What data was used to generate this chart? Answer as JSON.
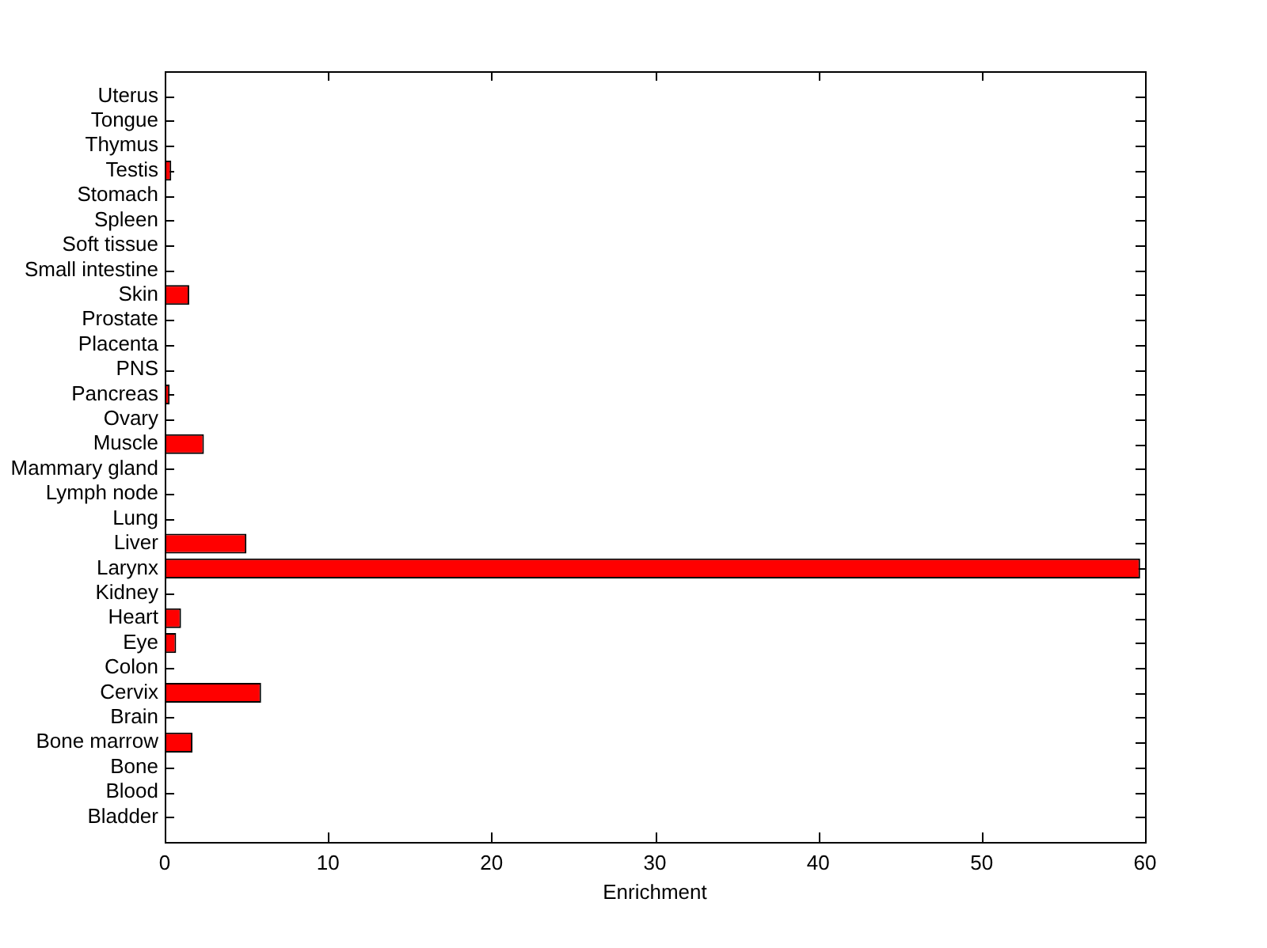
{
  "chart_data": {
    "type": "bar",
    "orientation": "horizontal",
    "xlabel": "Enrichment",
    "categories": [
      "Uterus",
      "Tongue",
      "Thymus",
      "Testis",
      "Stomach",
      "Spleen",
      "Soft tissue",
      "Small intestine",
      "Skin",
      "Prostate",
      "Placenta",
      "PNS",
      "Pancreas",
      "Ovary",
      "Muscle",
      "Mammary gland",
      "Lymph node",
      "Lung",
      "Liver",
      "Larynx",
      "Kidney",
      "Heart",
      "Eye",
      "Colon",
      "Cervix",
      "Brain",
      "Bone marrow",
      "Bone",
      "Blood",
      "Bladder"
    ],
    "values": [
      0,
      0,
      0,
      0.4,
      0,
      0,
      0,
      0,
      1.5,
      0,
      0,
      0,
      0.3,
      0,
      2.4,
      0,
      0,
      0,
      5.0,
      59.7,
      0,
      1.0,
      0.7,
      0,
      5.9,
      0,
      1.7,
      0,
      0,
      0
    ],
    "color": "#ff0000",
    "xlim": [
      0,
      60
    ],
    "xticks": [
      0,
      10,
      20,
      30,
      40,
      50,
      60
    ],
    "grid": false,
    "legend": false
  }
}
